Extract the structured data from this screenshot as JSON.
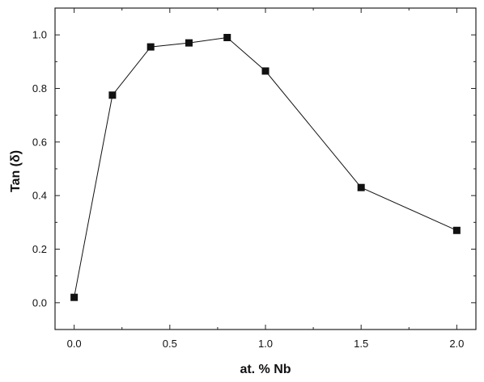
{
  "chart_data": {
    "type": "line",
    "title": "",
    "xlabel": "at. % Nb",
    "ylabel": "Tan (δ)",
    "xlim": [
      -0.1,
      2.1
    ],
    "ylim": [
      -0.1,
      1.1
    ],
    "x_ticks": [
      0.0,
      0.5,
      1.0,
      1.5,
      2.0
    ],
    "x_tick_labels": [
      "0.0",
      "0.5",
      "1.0",
      "1.5",
      "2.0"
    ],
    "y_ticks": [
      0.0,
      0.2,
      0.4,
      0.6,
      0.8,
      1.0
    ],
    "y_tick_labels": [
      "0.0",
      "0.2",
      "0.4",
      "0.6",
      "0.8",
      "1.0"
    ],
    "grid": false,
    "legend": "none",
    "series": [
      {
        "marker": "square",
        "color": "#111111",
        "x": [
          0.0,
          0.2,
          0.4,
          0.6,
          0.8,
          1.0,
          1.5,
          2.0
        ],
        "y": [
          0.02,
          0.775,
          0.955,
          0.97,
          0.99,
          0.865,
          0.43,
          0.27
        ]
      }
    ]
  }
}
